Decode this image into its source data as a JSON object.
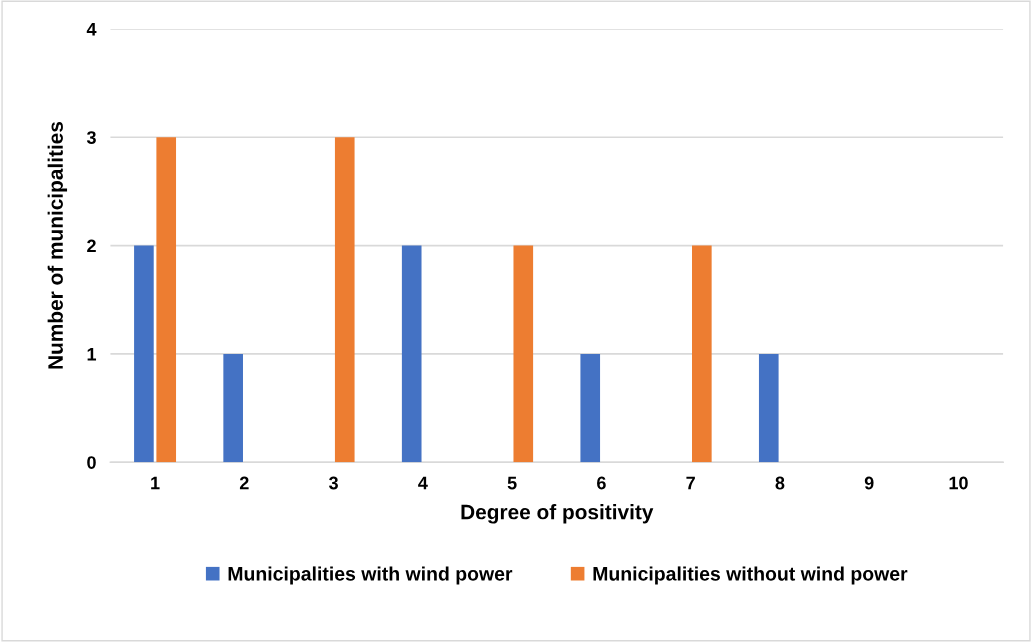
{
  "chart_data": {
    "type": "bar",
    "xlabel": "Degree of positivity",
    "ylabel": "Number of municipalities",
    "categories": [
      "1",
      "2",
      "3",
      "4",
      "5",
      "6",
      "7",
      "8",
      "9",
      "10"
    ],
    "series": [
      {
        "name": "Municipalities with wind power",
        "color": "#4472c4",
        "values": [
          2,
          1,
          0,
          2,
          0,
          1,
          0,
          1,
          0,
          0
        ]
      },
      {
        "name": "Municipalities without wind power",
        "color": "#ed7d31",
        "values": [
          3,
          0,
          3,
          0,
          2,
          0,
          2,
          0,
          0,
          0
        ]
      }
    ],
    "ylim": [
      0,
      4
    ],
    "yticks": [
      0,
      1,
      2,
      3,
      4
    ],
    "grid": "y",
    "legend": "bottom"
  }
}
